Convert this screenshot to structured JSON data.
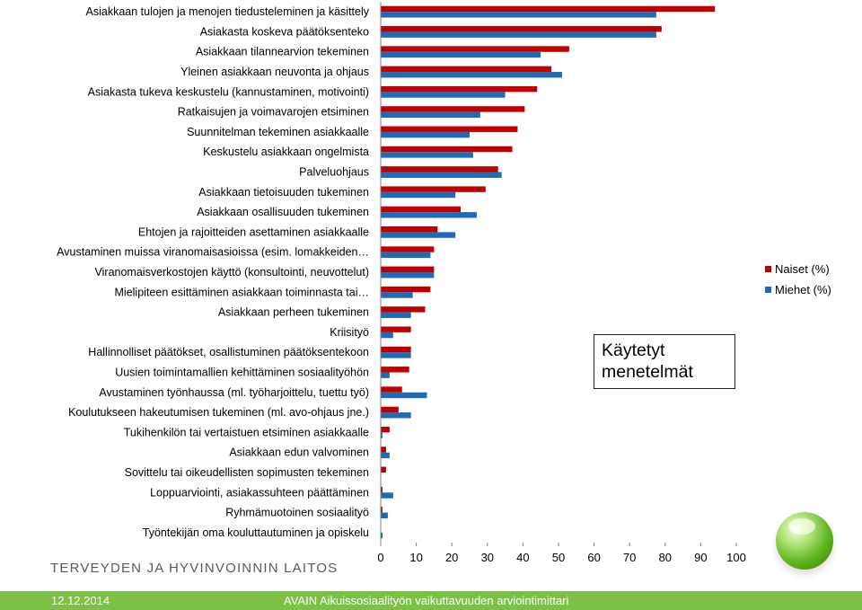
{
  "chart_data": {
    "type": "bar",
    "orientation": "horizontal",
    "categories": [
      "Asiakkaan tulojen ja menojen tiedusteleminen ja käsittely",
      "Asiakasta koskeva päätöksenteko",
      "Asiakkaan tilannearvion tekeminen",
      "Yleinen asiakkaan neuvonta ja ohjaus",
      "Asiakasta tukeva keskustelu (kannustaminen, motivointi)",
      "Ratkaisujen ja voimavarojen etsiminen",
      "Suunnitelman tekeminen asiakkaalle",
      "Keskustelu asiakkaan ongelmista",
      "Palveluohjaus",
      "Asiakkaan tietoisuuden tukeminen",
      "Asiakkaan osallisuuden tukeminen",
      "Ehtojen ja rajoitteiden asettaminen asiakkaalle",
      "Avustaminen muissa viranomaisasioissa (esim. lomakkeiden…",
      "Viranomaisverkostojen käyttö (konsultointi, neuvottelut)",
      "Mielipiteen esittäminen asiakkaan toiminnasta tai…",
      "Asiakkaan perheen tukeminen",
      "Kriisityö",
      "Hallinnolliset päätökset, osallistuminen päätöksentekoon",
      "Uusien toimintamallien kehittäminen sosiaalityöhön",
      "Avustaminen työnhaussa (ml. työharjoittelu, tuettu työ)",
      "Koulutukseen hakeutumisen tukeminen (ml. avo-ohjaus jne.)",
      "Tukihenkilön tai vertaistuen etsiminen asiakkaalle",
      "Asiakkaan edun valvominen",
      "Sovittelu tai oikeudellisten sopimusten tekeminen",
      "Loppuarviointi, asiakassuhteen päättäminen",
      "Ryhmämuotoinen sosiaalityö",
      "Työntekijän oma kouluttautuminen ja opiskelu"
    ],
    "series": [
      {
        "name": "Naiset (%)",
        "color": "#c00000",
        "values": [
          94,
          79,
          53,
          48,
          44,
          40.5,
          38.5,
          37,
          33,
          29.5,
          22.5,
          16,
          15,
          15,
          14,
          12.5,
          8.5,
          8.5,
          8,
          6,
          5,
          2.5,
          1.5,
          1.5,
          0.5,
          0.5,
          0
        ]
      },
      {
        "name": "Miehet (%)",
        "color": "#1f6bb8",
        "values": [
          77.5,
          77.5,
          45,
          51,
          35,
          28,
          25,
          26,
          34,
          21,
          27,
          21,
          14,
          15,
          9,
          8.5,
          3.5,
          8.5,
          2.5,
          13,
          8.5,
          0.5,
          2.5,
          0,
          3.5,
          2,
          0.5
        ]
      }
    ],
    "xlim": [
      0,
      100
    ],
    "xticks": [
      "0",
      "10",
      "20",
      "30",
      "40",
      "50",
      "60",
      "70",
      "80",
      "90",
      "100"
    ],
    "grid": false,
    "legend_position": "right"
  },
  "callout": {
    "text_line1": "Käytetyt",
    "text_line2": "menetelmät"
  },
  "organization": "TERVEYDEN JA HYVINVOINNIN LAITOS",
  "footer": {
    "date": "12.12.2014",
    "title": "AVAIN Aikuissosiaalityön vaikuttavuuden arviointimittari"
  }
}
